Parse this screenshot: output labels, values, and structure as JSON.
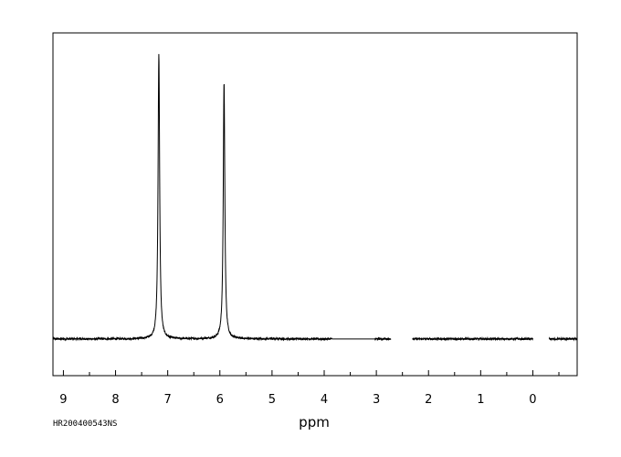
{
  "spectrum_id": "HR200400543NS",
  "chart_data": {
    "type": "line",
    "title": "",
    "xlabel": "ppm",
    "ylabel": "",
    "x_reversed": true,
    "xlim": [
      9.2,
      -0.85
    ],
    "ylim": [
      -0.12,
      1.0
    ],
    "grid": false,
    "x_ticks": [
      "9",
      "8",
      "7",
      "6",
      "5",
      "4",
      "3",
      "2",
      "1",
      "0"
    ],
    "series": [
      {
        "name": "",
        "line_color": "#000000",
        "baseline": 0,
        "peaks": [
          {
            "x": 7.17,
            "height": 0.935
          },
          {
            "x": 5.92,
            "height": 0.839
          }
        ],
        "baseline_gaps": [
          [
            3.85,
            3.03
          ],
          [
            2.72,
            2.31
          ],
          [
            0.0,
            -0.31
          ]
        ]
      }
    ]
  }
}
